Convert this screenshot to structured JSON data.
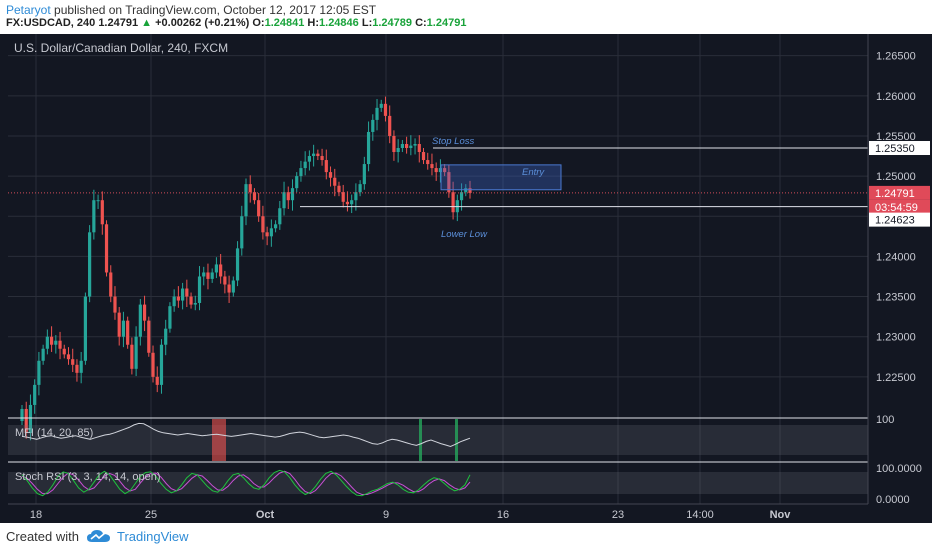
{
  "header": {
    "author": "Petaryot",
    "published": "published on TradingView.com, October 12, 2017 12:05 EST",
    "symbol": "FX:USDCAD, 240",
    "last": "1.24791",
    "change_arrow": "▲",
    "change": "+0.00262 (+0.21%)",
    "o_label": "O:",
    "o_val": "1.24841",
    "h_label": "H:",
    "h_val": "1.24846",
    "l_label": "L:",
    "l_val": "1.24789",
    "c_label": "C:",
    "c_val": "1.24791"
  },
  "chart_title": "U.S. Dollar/Canadian Dollar, 240, FXCM",
  "footer": {
    "created_with": "Created with",
    "brand": "TradingView"
  },
  "colors": {
    "background": "#131722",
    "up": "#26a69a",
    "down": "#ef5350",
    "grid": "#2a2e39",
    "text": "#c7c9d1",
    "annotation": "#5b8fd9",
    "price_line": "#d24b5a"
  },
  "chart_data": {
    "type": "candlestick",
    "price_axis_ticks": [
      "1.26500",
      "1.26000",
      "1.25500",
      "1.25000",
      "1.24500",
      "1.24000",
      "1.23500",
      "1.23000",
      "1.22500"
    ],
    "price_range": [
      1.22,
      1.2672
    ],
    "time_axis_ticks": [
      "18",
      "25",
      "Oct",
      "9",
      "16",
      "23",
      "14:00",
      "Nov"
    ],
    "price_labels": {
      "stop_level": "1.25350",
      "last_price": "1.24791",
      "countdown": "03:54:59",
      "low_level": "1.24623"
    },
    "closes": [
      1.221,
      1.218,
      1.2215,
      1.224,
      1.227,
      1.2285,
      1.23,
      1.229,
      1.2295,
      1.2285,
      1.2278,
      1.2272,
      1.2265,
      1.2255,
      1.227,
      1.235,
      1.243,
      1.247,
      1.247,
      1.244,
      1.238,
      1.235,
      1.233,
      1.23,
      1.232,
      1.229,
      1.226,
      1.23,
      1.234,
      1.232,
      1.228,
      1.225,
      1.224,
      1.229,
      1.231,
      1.2338,
      1.235,
      1.2345,
      1.236,
      1.235,
      1.234,
      1.2342,
      1.2375,
      1.238,
      1.2372,
      1.238,
      1.239,
      1.2375,
      1.2365,
      1.2355,
      1.237,
      1.241,
      1.245,
      1.249,
      1.248,
      1.247,
      1.245,
      1.243,
      1.2425,
      1.2435,
      1.244,
      1.246,
      1.248,
      1.247,
      1.2485,
      1.25,
      1.251,
      1.2518,
      1.2525,
      1.2528,
      1.2525,
      1.252,
      1.2505,
      1.2498,
      1.2488,
      1.248,
      1.2468,
      1.2465,
      1.247,
      1.248,
      1.249,
      1.2515,
      1.2555,
      1.257,
      1.2585,
      1.259,
      1.2575,
      1.255,
      1.253,
      1.2535,
      1.254,
      1.2535,
      1.2538,
      1.254,
      1.253,
      1.252,
      1.2515,
      1.251,
      1.2505,
      1.251,
      1.2505,
      1.248,
      1.2455,
      1.247,
      1.248,
      1.2485,
      1.2479
    ],
    "overlays": {
      "stop_loss_label": "Stop Loss",
      "entry_label": "Entry",
      "lower_low_label": "Lower Low",
      "stop_level": 1.2535,
      "support_level": 1.2462,
      "last_level": 1.24791,
      "entry_zone": [
        1.2483,
        1.2514
      ]
    },
    "mfi": {
      "label": "MFI (14, 20, 85)",
      "axis_tick": "100",
      "values": [
        60,
        58,
        55,
        52,
        56,
        60,
        62,
        58,
        55,
        57,
        60,
        62,
        58,
        55,
        52,
        56,
        60,
        64,
        66,
        70,
        75,
        80,
        85,
        92,
        96,
        95,
        88,
        80,
        74,
        70,
        68,
        66,
        64,
        66,
        68,
        66,
        64,
        62,
        63,
        65,
        66,
        64,
        62,
        60,
        62,
        64,
        66,
        68,
        66,
        64,
        62,
        60,
        58,
        60,
        64,
        68,
        70,
        72,
        70,
        66,
        62,
        58,
        56,
        58,
        60,
        62,
        64,
        62,
        58,
        55,
        50,
        45,
        40,
        38,
        42,
        48,
        52,
        50,
        46,
        42,
        38,
        35,
        40,
        46,
        50,
        45,
        40,
        36,
        32,
        38,
        45,
        50,
        55
      ]
    },
    "stoch_rsi": {
      "label": "Stoch RSI (3, 3, 14, 14, open)",
      "axis_tick_top": "100.0000",
      "axis_tick_bottom": "0.0000",
      "k": [
        80,
        60,
        35,
        15,
        8,
        20,
        45,
        75,
        90,
        85,
        60,
        35,
        20,
        30,
        55,
        80,
        92,
        80,
        55,
        30,
        15,
        25,
        50,
        75,
        88,
        90,
        75,
        50,
        30,
        18,
        25,
        45,
        70,
        85,
        80,
        60,
        40,
        25,
        20,
        35,
        60,
        80,
        85,
        70,
        50,
        35,
        30,
        45,
        70,
        88,
        95,
        90,
        70,
        45,
        25,
        12,
        20,
        40,
        65,
        85,
        92,
        80,
        60,
        40,
        22,
        10,
        8,
        15,
        25,
        30,
        40,
        50,
        55,
        45,
        30,
        20,
        18,
        28,
        45,
        60,
        70,
        65,
        50,
        35,
        25,
        30,
        45,
        80
      ],
      "d": [
        75,
        68,
        50,
        30,
        15,
        15,
        28,
        50,
        72,
        86,
        80,
        62,
        40,
        28,
        35,
        55,
        75,
        85,
        78,
        58,
        36,
        24,
        30,
        52,
        72,
        85,
        86,
        72,
        50,
        32,
        25,
        32,
        50,
        68,
        80,
        76,
        60,
        42,
        28,
        27,
        40,
        60,
        76,
        80,
        68,
        50,
        38,
        38,
        52,
        70,
        86,
        92,
        84,
        64,
        40,
        22,
        16,
        26,
        46,
        68,
        84,
        86,
        76,
        58,
        38,
        20,
        12,
        12,
        18,
        26,
        34,
        44,
        52,
        52,
        44,
        32,
        22,
        22,
        32,
        48,
        60,
        66,
        60,
        46,
        34,
        28,
        35,
        55
      ]
    }
  }
}
